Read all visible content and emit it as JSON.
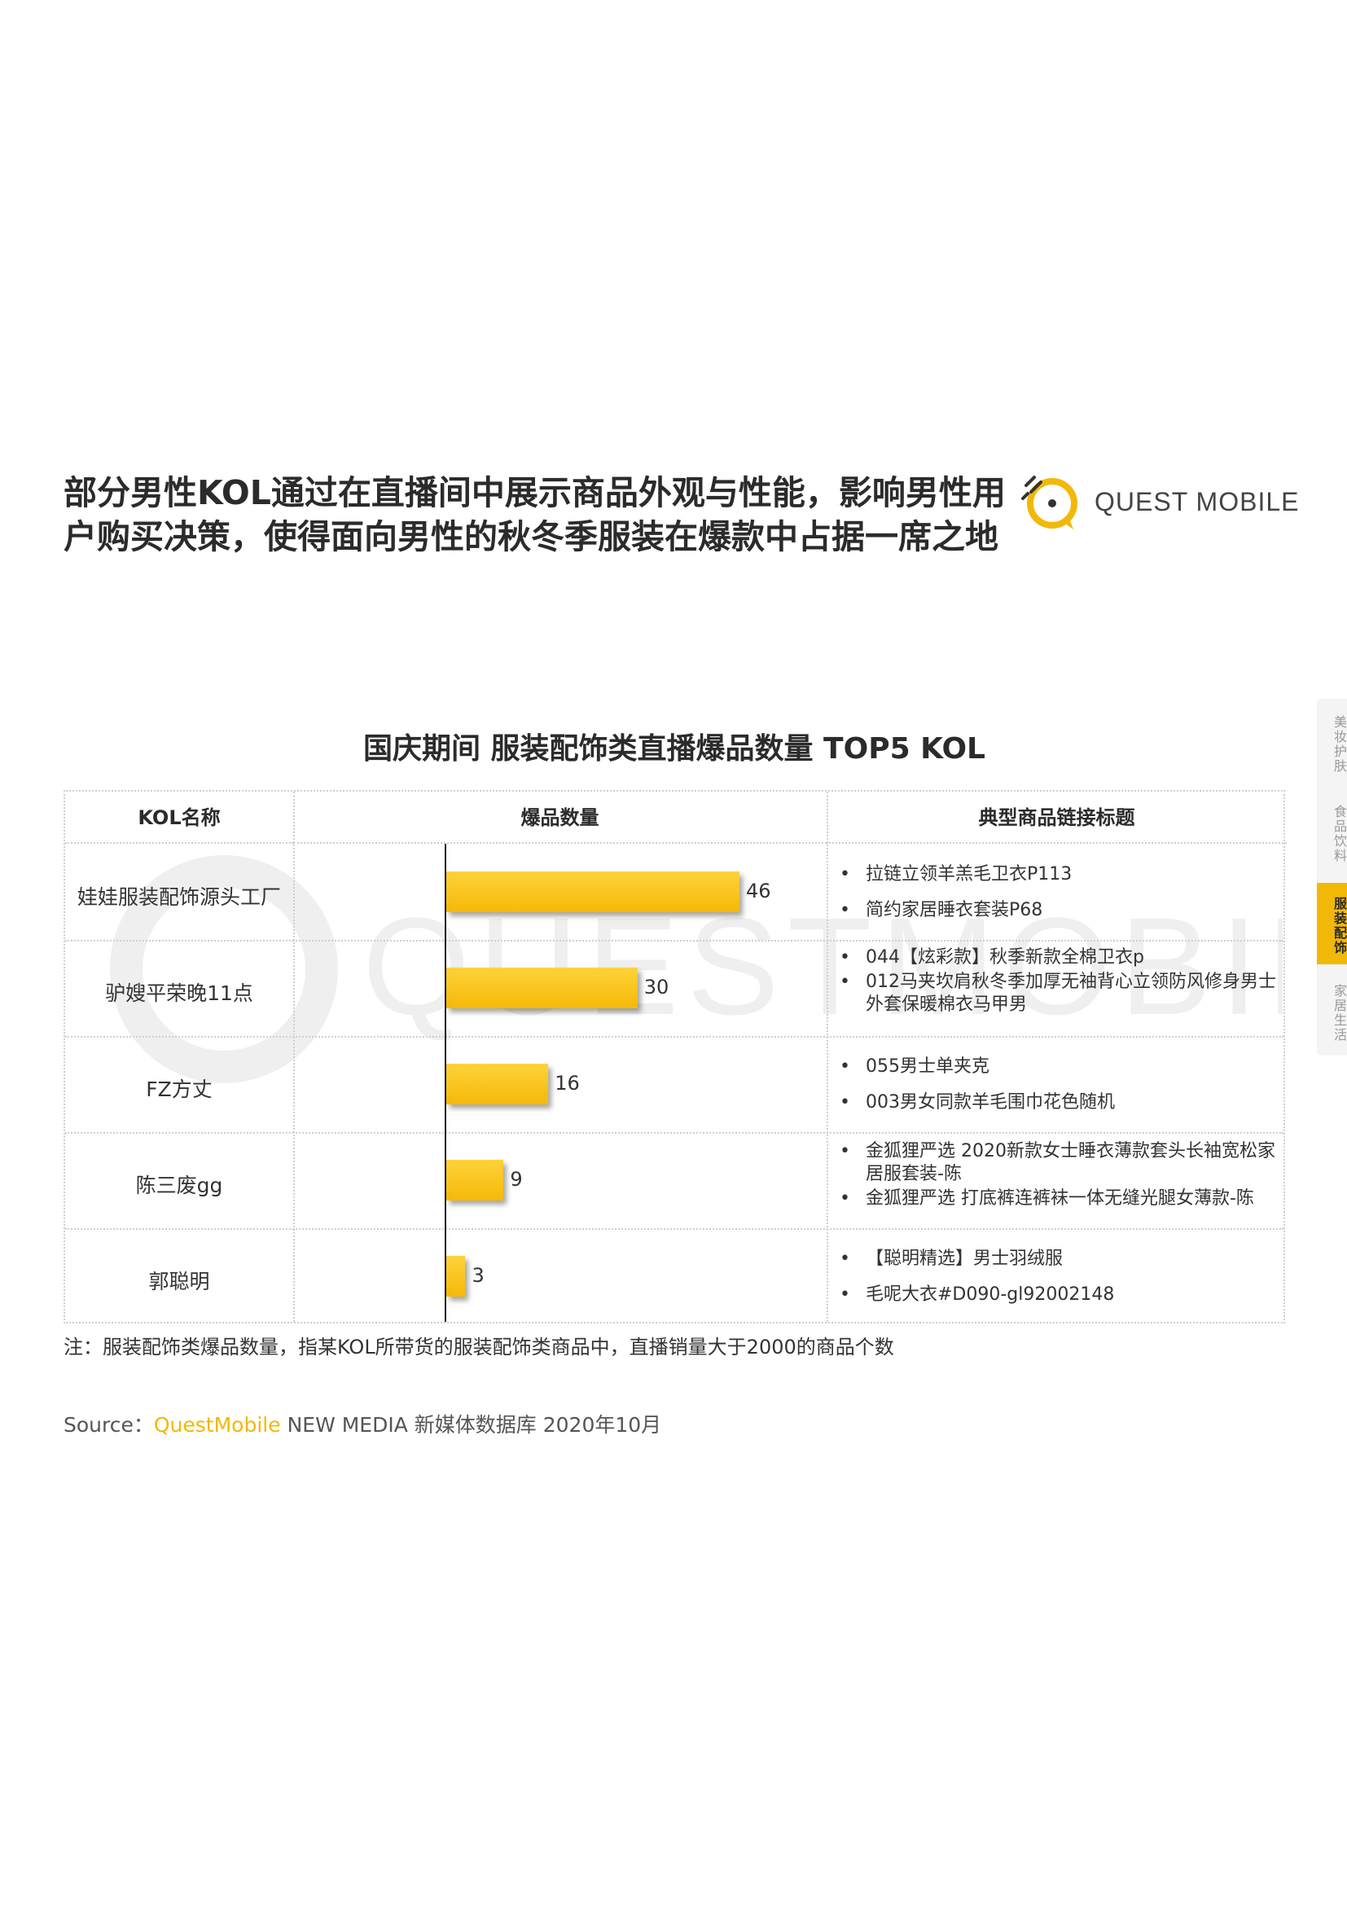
{
  "headline": "部分男性KOL通过在直播间中展示商品外观与性能，影响男性用户购买决策，使得面向男性的秋冬季服装在爆款中占据一席之地",
  "logo": {
    "text": "QUEST MOBILE",
    "color": "#f2b807"
  },
  "side_nav": [
    {
      "label": "美妆护肤",
      "active": false
    },
    {
      "label": "食品饮料",
      "active": false
    },
    {
      "label": "服装配饰",
      "active": true
    },
    {
      "label": "家居生活",
      "active": false
    }
  ],
  "table": {
    "headers": {
      "name": "KOL名称",
      "count": "爆品数量",
      "links": "典型商品链接标题"
    }
  },
  "chart_data": {
    "type": "bar",
    "orientation": "horizontal",
    "title": "国庆期间 服装配饰类直播爆品数量 TOP5 KOL",
    "categories": [
      "娃娃服装配饰源头工厂",
      "驴嫂平荣晚11点",
      "FZ方丈",
      "陈三废gg",
      "郭聪明"
    ],
    "values": [
      46,
      30,
      16,
      9,
      3
    ],
    "bar_color": "#f5b906",
    "value_labels": true
  },
  "rows": [
    {
      "name": "娃娃服装配饰源头工厂",
      "value_label": "46",
      "links": [
        "拉链立领羊羔毛卫衣P113",
        "简约家居睡衣套装P68"
      ]
    },
    {
      "name": "驴嫂平荣晚11点",
      "value_label": "30",
      "links": [
        "044【炫彩款】秋季新款全棉卫衣p",
        "012马夹坎肩秋冬季加厚无袖背心立领防风修身男士外套保暖棉衣马甲男"
      ]
    },
    {
      "name": "FZ方丈",
      "value_label": "16",
      "links": [
        "055男士单夹克",
        "003男女同款羊毛围巾花色随机"
      ]
    },
    {
      "name": "陈三废gg",
      "value_label": "9",
      "links": [
        "金狐狸严选  2020新款女士睡衣薄款套头长袖宽松家居服套装-陈",
        "金狐狸严选  打底裤连裤袜一体无缝光腿女薄款-陈"
      ]
    },
    {
      "name": "郭聪明",
      "value_label": "3",
      "links": [
        "【聪明精选】男士羽绒服",
        "毛呢大衣#D090-gl92002148"
      ]
    }
  ],
  "note": "注：服装配饰类爆品数量，指某KOL所带货的服装配饰类商品中，直播销量大于2000的商品个数",
  "source": {
    "prefix": "Source：",
    "brand": "QuestMobile",
    "rest": " NEW MEDIA 新媒体数据库 2020年10月"
  }
}
